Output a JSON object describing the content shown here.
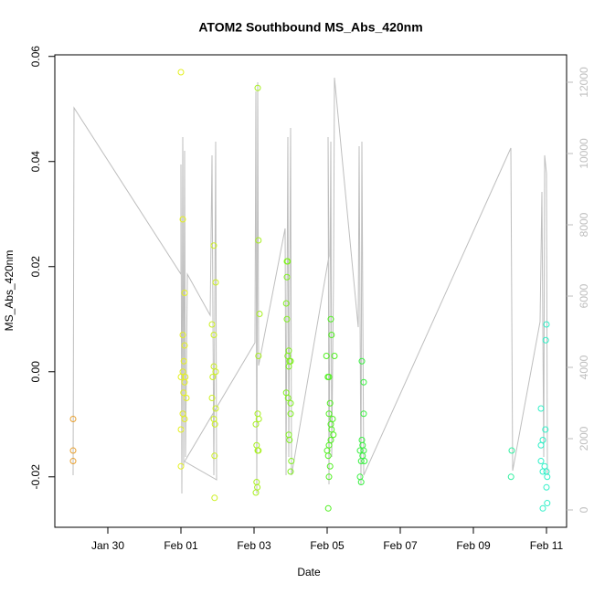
{
  "chart_data": {
    "type": "scatter",
    "title": "ATOM2 Southbound MS_Abs_420nm",
    "xlabel": "Date",
    "ylabel": "MS_Abs_420nm",
    "xlim": [
      28.55,
      42.55
    ],
    "ylim": [
      -0.0296,
      0.0603
    ],
    "y2lim": [
      -487,
      12769
    ],
    "xticks": [
      {
        "value": 30,
        "label": "Jan 30"
      },
      {
        "value": 32,
        "label": "Feb 01"
      },
      {
        "value": 34,
        "label": "Feb 03"
      },
      {
        "value": 36,
        "label": "Feb 05"
      },
      {
        "value": 38,
        "label": "Feb 07"
      },
      {
        "value": 40,
        "label": "Feb 09"
      },
      {
        "value": 42,
        "label": "Feb 11"
      }
    ],
    "yticks": [
      -0.02,
      {
        "value": 0,
        "label": "0.00"
      },
      0.02,
      0.04,
      0.06
    ],
    "y2ticks": [
      0,
      2000,
      4000,
      6000,
      8000,
      10000,
      12000
    ],
    "series": [
      {
        "type": "line",
        "axis": "y2",
        "color": "#bebebe",
        "x": [
          29.05,
          29.075,
          32,
          32,
          32.025,
          32.05,
          32.075,
          32.1,
          32.125,
          32.175,
          32.8,
          32.85,
          32.9,
          32.95,
          32.975,
          32.1,
          34.025,
          34.05,
          34.075,
          34.1,
          34.125,
          34.85,
          34.875,
          34.925,
          34.95,
          35,
          35.025,
          36.05,
          36.025,
          36.05,
          36.1,
          36.125,
          36.175,
          36.2,
          36.85,
          36.875,
          36.925,
          36.95,
          37,
          41.025,
          41.075,
          41.825,
          41.875,
          41.925,
          41.95,
          42,
          42.025
        ],
        "values": [
          974,
          11282,
          6615,
          9692,
          462,
          10462,
          1231,
          10077,
          1487,
          6615,
          5462,
          9949,
          974,
          10333,
          846,
          1359,
          4692,
          11744,
          462,
          12000,
          4051,
          7897,
          974,
          10462,
          1487,
          10718,
          974,
          7128,
          10462,
          718,
          10333,
          1487,
          6615,
          12128,
          5128,
          10205,
          718,
          10333,
          974,
          10154,
          1103,
          5282,
          8923,
          1487,
          9949,
          9436,
          974
        ]
      },
      {
        "type": "scatter",
        "color": "#e8a030",
        "x": [
          29.05,
          29.05,
          29.05
        ],
        "values": [
          -0.009,
          -0.015,
          -0.017
        ]
      },
      {
        "type": "scatter",
        "color": "#e4f020",
        "x": [
          32.0,
          32.05,
          32.1,
          32.05,
          32.1,
          32.08,
          32.05,
          32.12,
          32.0,
          32.1,
          32.07,
          32.15,
          32.05,
          32.1,
          32.0,
          32.0
        ],
        "values": [
          0.057,
          0.029,
          0.015,
          0.007,
          0.005,
          0.002,
          0.0,
          -0.001,
          -0.001,
          -0.002,
          -0.004,
          -0.005,
          -0.008,
          -0.009,
          -0.011,
          -0.018
        ]
      },
      {
        "type": "scatter",
        "color": "#ccf020",
        "x": [
          32.9,
          32.95,
          32.85,
          32.9,
          32.9,
          32.95,
          32.87,
          32.85,
          32.95,
          32.9,
          32.93,
          32.92,
          32.92
        ],
        "values": [
          0.024,
          0.017,
          0.009,
          0.007,
          0.001,
          0.0,
          -0.001,
          -0.005,
          -0.007,
          -0.009,
          -0.01,
          -0.016,
          -0.024
        ]
      },
      {
        "type": "scatter",
        "color": "#a8f020",
        "x": [
          34.1,
          34.12,
          34.15,
          34.12,
          34.1,
          34.13,
          34.05,
          34.07,
          34.12,
          34.1,
          34.07,
          34.09,
          34.05
        ],
        "values": [
          0.054,
          0.025,
          0.011,
          0.003,
          -0.008,
          -0.009,
          -0.01,
          -0.014,
          -0.015,
          -0.015,
          -0.021,
          -0.022,
          -0.023
        ]
      },
      {
        "type": "scatter",
        "color": "#80f020",
        "x": [
          34.9,
          34.92,
          34.9,
          34.88,
          34.9,
          34.95,
          34.92,
          34.97,
          35.0,
          34.95,
          34.88,
          34.93,
          35.0,
          35.0,
          34.95,
          34.97,
          35.02,
          35.0
        ],
        "values": [
          0.021,
          0.021,
          0.018,
          0.013,
          0.01,
          0.004,
          0.003,
          0.002,
          0.002,
          0.001,
          -0.004,
          -0.005,
          -0.006,
          -0.008,
          -0.012,
          -0.013,
          -0.017,
          -0.019
        ]
      },
      {
        "type": "scatter",
        "color": "#50f020",
        "x": [
          36.1,
          36.12,
          35.98,
          36.2,
          36.02,
          36.05,
          36.08,
          36.05,
          36.15,
          36.1,
          36.12,
          36.17,
          36.1,
          36.05,
          36.0,
          36.03,
          36.08,
          36.05,
          36.03
        ],
        "values": [
          0.01,
          0.007,
          0.003,
          0.003,
          -0.001,
          -0.001,
          -0.006,
          -0.008,
          -0.009,
          -0.01,
          -0.011,
          -0.012,
          -0.013,
          -0.014,
          -0.015,
          -0.016,
          -0.018,
          -0.02,
          -0.026
        ]
      },
      {
        "type": "scatter",
        "color": "#38f040",
        "x": [
          36.95,
          37.0,
          37.0,
          36.95,
          36.97,
          36.9,
          37.0,
          36.97,
          37.02,
          36.93,
          36.9,
          36.93
        ],
        "values": [
          0.002,
          -0.002,
          -0.008,
          -0.013,
          -0.014,
          -0.015,
          -0.015,
          -0.016,
          -0.017,
          -0.017,
          -0.02,
          -0.021
        ]
      },
      {
        "type": "scatter",
        "color": "#30f0a0",
        "x": [
          41.05,
          41.03
        ],
        "values": [
          -0.015,
          -0.02
        ]
      },
      {
        "type": "scatter",
        "color": "#30f0c8",
        "x": [
          42.0,
          41.98,
          41.85,
          41.97,
          41.9,
          41.85,
          41.85,
          41.95,
          41.9,
          42.0,
          42.02,
          42.0,
          42.02,
          41.9
        ],
        "values": [
          0.009,
          0.006,
          -0.007,
          -0.011,
          -0.013,
          -0.014,
          -0.017,
          -0.018,
          -0.019,
          -0.019,
          -0.02,
          -0.022,
          -0.025,
          -0.026
        ]
      }
    ]
  }
}
